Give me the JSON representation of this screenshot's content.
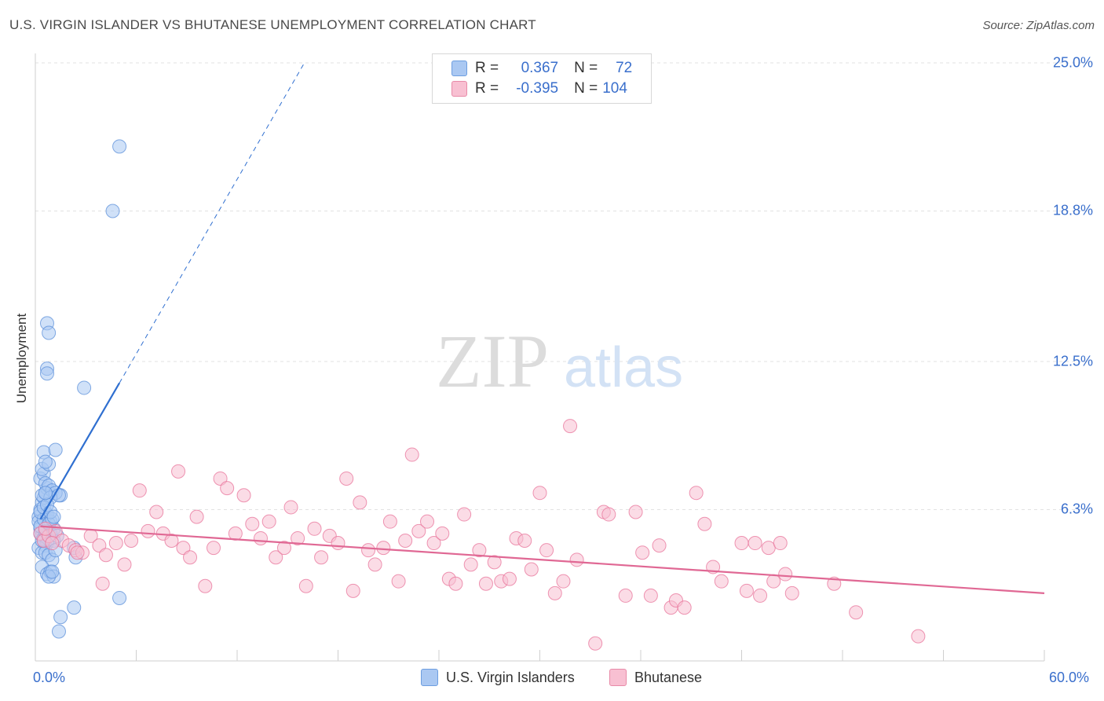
{
  "title": "U.S. VIRGIN ISLANDER VS BHUTANESE UNEMPLOYMENT CORRELATION CHART",
  "source": "Source: ZipAtlas.com",
  "watermark": {
    "zip": "ZIP",
    "atlas": "atlas"
  },
  "legend": {
    "rows": [
      {
        "r_label": "R =",
        "r_value": "0.367",
        "n_label": "N =",
        "n_value": "72",
        "color": "#aac8f2",
        "stroke": "#6d9ee0"
      },
      {
        "r_label": "R =",
        "r_value": "-0.395",
        "n_label": "N =",
        "n_value": "104",
        "color": "#f8c0d2",
        "stroke": "#e88aa8"
      }
    ]
  },
  "bottom_legend": [
    {
      "label": "U.S. Virgin Islanders",
      "color": "#aac8f2",
      "stroke": "#6d9ee0"
    },
    {
      "label": "Bhutanese",
      "color": "#f8c0d2",
      "stroke": "#e88aa8"
    }
  ],
  "chart_data": {
    "type": "scatter",
    "title": "U.S. VIRGIN ISLANDER VS BHUTANESE UNEMPLOYMENT CORRELATION CHART",
    "xlabel": "",
    "ylabel": "Unemployment",
    "xlim": [
      0,
      60
    ],
    "ylim": [
      0,
      25
    ],
    "x_tick_labels": [
      "0.0%",
      "60.0%"
    ],
    "y_ticks": [
      6.3,
      12.5,
      18.8,
      25.0
    ],
    "y_tick_labels": [
      "6.3%",
      "12.5%",
      "18.8%",
      "25.0%"
    ],
    "grid": true,
    "series": [
      {
        "name": "U.S. Virgin Islanders",
        "color": "#5b8fd9",
        "fill": "#aac8f2",
        "R": 0.367,
        "N": 72,
        "trend": {
          "x0": 0.3,
          "y0": 5.9,
          "x1": 5.0,
          "y1": 11.6,
          "dash_to_x": 16.0,
          "dash_to_y": 25.0,
          "color": "#2f6fd0"
        },
        "points": [
          [
            0.2,
            6.0
          ],
          [
            0.3,
            5.5
          ],
          [
            0.4,
            5.2
          ],
          [
            0.5,
            5.0
          ],
          [
            0.6,
            4.8
          ],
          [
            0.2,
            5.8
          ],
          [
            0.3,
            6.3
          ],
          [
            0.4,
            6.6
          ],
          [
            0.5,
            6.8
          ],
          [
            0.6,
            7.0
          ],
          [
            0.7,
            7.2
          ],
          [
            0.3,
            7.6
          ],
          [
            0.5,
            7.8
          ],
          [
            0.4,
            8.0
          ],
          [
            0.8,
            8.2
          ],
          [
            0.5,
            8.7
          ],
          [
            0.6,
            8.3
          ],
          [
            1.2,
            8.8
          ],
          [
            0.4,
            6.9
          ],
          [
            0.6,
            7.4
          ],
          [
            0.8,
            7.3
          ],
          [
            1.0,
            7.1
          ],
          [
            1.5,
            6.9
          ],
          [
            1.2,
            7.0
          ],
          [
            0.9,
            6.8
          ],
          [
            0.3,
            5.3
          ],
          [
            0.5,
            5.1
          ],
          [
            0.7,
            4.9
          ],
          [
            0.9,
            5.3
          ],
          [
            1.1,
            5.0
          ],
          [
            0.2,
            4.7
          ],
          [
            0.4,
            4.5
          ],
          [
            0.6,
            4.5
          ],
          [
            0.8,
            4.4
          ],
          [
            1.0,
            4.2
          ],
          [
            1.2,
            4.6
          ],
          [
            0.4,
            3.9
          ],
          [
            0.7,
            3.6
          ],
          [
            0.9,
            3.7
          ],
          [
            1.1,
            3.5
          ],
          [
            0.8,
            3.5
          ],
          [
            1.0,
            3.7
          ],
          [
            2.4,
            4.3
          ],
          [
            2.3,
            4.7
          ],
          [
            0.7,
            14.1
          ],
          [
            0.8,
            13.7
          ],
          [
            0.7,
            12.2
          ],
          [
            0.7,
            12.0
          ],
          [
            2.9,
            11.4
          ],
          [
            5.0,
            21.5
          ],
          [
            4.6,
            18.8
          ],
          [
            5.0,
            2.6
          ],
          [
            2.3,
            2.2
          ],
          [
            1.5,
            1.8
          ],
          [
            1.4,
            1.2
          ],
          [
            0.3,
            5.6
          ],
          [
            0.5,
            5.9
          ],
          [
            0.7,
            6.1
          ],
          [
            0.9,
            5.8
          ],
          [
            1.1,
            5.5
          ],
          [
            0.4,
            5.0
          ],
          [
            0.6,
            5.4
          ],
          [
            0.8,
            5.7
          ],
          [
            1.0,
            5.9
          ],
          [
            0.3,
            6.2
          ],
          [
            0.5,
            6.4
          ],
          [
            0.7,
            6.5
          ],
          [
            1.3,
            5.2
          ],
          [
            0.9,
            6.2
          ],
          [
            1.1,
            6.0
          ],
          [
            0.6,
            7.0
          ],
          [
            1.4,
            6.9
          ]
        ]
      },
      {
        "name": "Bhutanese",
        "color": "#e8739a",
        "fill": "#f8c0d2",
        "R": -0.395,
        "N": 104,
        "trend": {
          "x0": 0.3,
          "y0": 5.6,
          "x1": 60.0,
          "y1": 2.8,
          "color": "#e06894"
        },
        "points": [
          [
            0.3,
            5.3
          ],
          [
            0.5,
            5.0
          ],
          [
            0.8,
            5.2
          ],
          [
            1.2,
            5.4
          ],
          [
            1.6,
            5.0
          ],
          [
            2.0,
            4.8
          ],
          [
            2.4,
            4.6
          ],
          [
            2.8,
            4.5
          ],
          [
            3.3,
            5.2
          ],
          [
            3.8,
            4.8
          ],
          [
            4.2,
            4.4
          ],
          [
            4.8,
            4.9
          ],
          [
            5.3,
            4.0
          ],
          [
            5.7,
            5.0
          ],
          [
            6.2,
            7.1
          ],
          [
            6.7,
            5.4
          ],
          [
            7.2,
            6.2
          ],
          [
            7.6,
            5.3
          ],
          [
            8.1,
            5.0
          ],
          [
            8.5,
            7.9
          ],
          [
            8.8,
            4.7
          ],
          [
            9.2,
            4.3
          ],
          [
            9.6,
            6.0
          ],
          [
            10.1,
            3.1
          ],
          [
            10.6,
            4.7
          ],
          [
            11.0,
            7.6
          ],
          [
            11.4,
            7.2
          ],
          [
            11.9,
            5.3
          ],
          [
            12.4,
            6.9
          ],
          [
            12.9,
            5.7
          ],
          [
            13.4,
            5.1
          ],
          [
            13.9,
            5.8
          ],
          [
            14.3,
            4.3
          ],
          [
            14.8,
            4.7
          ],
          [
            15.2,
            6.4
          ],
          [
            15.6,
            5.1
          ],
          [
            16.1,
            3.1
          ],
          [
            16.6,
            5.5
          ],
          [
            17.0,
            4.3
          ],
          [
            17.5,
            5.2
          ],
          [
            18.0,
            4.9
          ],
          [
            18.5,
            7.6
          ],
          [
            18.9,
            2.9
          ],
          [
            19.3,
            6.6
          ],
          [
            19.8,
            4.6
          ],
          [
            20.2,
            4.0
          ],
          [
            20.7,
            4.7
          ],
          [
            21.1,
            5.8
          ],
          [
            21.6,
            3.3
          ],
          [
            22.0,
            5.0
          ],
          [
            22.4,
            8.6
          ],
          [
            22.8,
            5.4
          ],
          [
            23.3,
            5.8
          ],
          [
            23.7,
            4.9
          ],
          [
            24.2,
            5.3
          ],
          [
            24.6,
            3.4
          ],
          [
            25.0,
            3.2
          ],
          [
            25.5,
            6.1
          ],
          [
            25.9,
            4.0
          ],
          [
            26.4,
            4.6
          ],
          [
            26.8,
            3.2
          ],
          [
            27.3,
            4.1
          ],
          [
            27.7,
            3.3
          ],
          [
            28.2,
            3.4
          ],
          [
            28.6,
            5.1
          ],
          [
            29.1,
            5.0
          ],
          [
            29.5,
            3.8
          ],
          [
            30.0,
            7.0
          ],
          [
            30.4,
            4.6
          ],
          [
            30.9,
            2.8
          ],
          [
            31.4,
            3.3
          ],
          [
            31.8,
            9.8
          ],
          [
            32.2,
            4.2
          ],
          [
            33.3,
            0.7
          ],
          [
            33.8,
            6.2
          ],
          [
            34.1,
            6.1
          ],
          [
            35.1,
            2.7
          ],
          [
            35.7,
            6.2
          ],
          [
            36.1,
            4.5
          ],
          [
            36.6,
            2.7
          ],
          [
            37.1,
            4.8
          ],
          [
            37.8,
            2.2
          ],
          [
            38.1,
            2.5
          ],
          [
            38.6,
            2.2
          ],
          [
            39.3,
            7.0
          ],
          [
            39.8,
            5.7
          ],
          [
            40.3,
            3.9
          ],
          [
            40.8,
            3.3
          ],
          [
            42.0,
            4.9
          ],
          [
            42.3,
            2.9
          ],
          [
            42.8,
            4.9
          ],
          [
            43.1,
            2.7
          ],
          [
            43.6,
            4.7
          ],
          [
            43.9,
            3.3
          ],
          [
            44.3,
            4.9
          ],
          [
            44.6,
            3.6
          ],
          [
            45.0,
            2.8
          ],
          [
            47.5,
            3.2
          ],
          [
            48.8,
            2.0
          ],
          [
            52.5,
            1.0
          ],
          [
            0.6,
            5.5
          ],
          [
            1.0,
            4.9
          ],
          [
            2.5,
            4.5
          ],
          [
            4.0,
            3.2
          ]
        ]
      }
    ]
  }
}
